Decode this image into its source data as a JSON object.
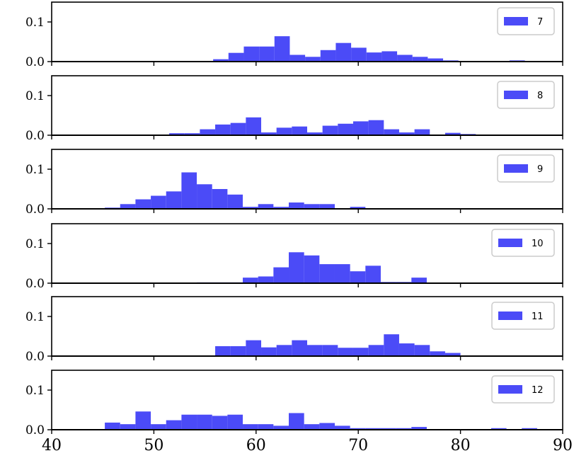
{
  "chart_data": {
    "type": "histogram",
    "layout": "stacked-subplots",
    "shared_x": true,
    "xlim": [
      40,
      90
    ],
    "xticks": [
      40,
      50,
      60,
      70,
      80,
      90
    ],
    "ylim": [
      0,
      0.15
    ],
    "yticks": [
      0.0,
      0.1
    ],
    "ytick_labels": [
      "0.0",
      "0.1"
    ],
    "bar_color": "#4b4bf7",
    "legend_placement": "top-right",
    "grid": false,
    "panels": [
      {
        "name": "7",
        "bins": [
          [
            55.8,
            57.3,
            0.006
          ],
          [
            57.3,
            58.8,
            0.022
          ],
          [
            58.8,
            60.3,
            0.038
          ],
          [
            60.3,
            61.8,
            0.038
          ],
          [
            61.8,
            63.3,
            0.064
          ],
          [
            63.3,
            64.8,
            0.017
          ],
          [
            64.8,
            66.3,
            0.012
          ],
          [
            66.3,
            67.8,
            0.029
          ],
          [
            67.8,
            69.3,
            0.047
          ],
          [
            69.3,
            70.8,
            0.035
          ],
          [
            70.8,
            72.3,
            0.023
          ],
          [
            72.3,
            73.8,
            0.026
          ],
          [
            73.8,
            75.3,
            0.017
          ],
          [
            75.3,
            76.8,
            0.012
          ],
          [
            76.8,
            78.3,
            0.008
          ],
          [
            78.3,
            79.8,
            0.003
          ],
          [
            84.8,
            86.3,
            0.003
          ]
        ]
      },
      {
        "name": "8",
        "bins": [
          [
            51.5,
            53.0,
            0.005
          ],
          [
            53.0,
            54.5,
            0.005
          ],
          [
            54.5,
            56.0,
            0.015
          ],
          [
            56.0,
            57.5,
            0.027
          ],
          [
            57.5,
            59.0,
            0.031
          ],
          [
            59.0,
            60.5,
            0.045
          ],
          [
            60.5,
            62.0,
            0.007
          ],
          [
            62.0,
            63.5,
            0.019
          ],
          [
            63.5,
            65.0,
            0.022
          ],
          [
            65.0,
            66.5,
            0.007
          ],
          [
            66.5,
            68.0,
            0.024
          ],
          [
            68.0,
            69.5,
            0.029
          ],
          [
            69.5,
            71.0,
            0.035
          ],
          [
            71.0,
            72.5,
            0.038
          ],
          [
            72.5,
            74.0,
            0.015
          ],
          [
            74.0,
            75.5,
            0.007
          ],
          [
            75.5,
            77.0,
            0.015
          ],
          [
            78.5,
            80.0,
            0.006
          ],
          [
            80.0,
            81.5,
            0.003
          ]
        ]
      },
      {
        "name": "9",
        "bins": [
          [
            45.2,
            46.7,
            0.003
          ],
          [
            46.7,
            48.2,
            0.012
          ],
          [
            48.2,
            49.7,
            0.024
          ],
          [
            49.7,
            51.2,
            0.033
          ],
          [
            51.2,
            52.7,
            0.044
          ],
          [
            52.7,
            54.2,
            0.092
          ],
          [
            54.2,
            55.7,
            0.062
          ],
          [
            55.7,
            57.2,
            0.05
          ],
          [
            57.2,
            58.7,
            0.036
          ],
          [
            58.7,
            60.2,
            0.005
          ],
          [
            60.2,
            61.7,
            0.012
          ],
          [
            61.7,
            63.2,
            0.005
          ],
          [
            63.2,
            64.7,
            0.016
          ],
          [
            64.7,
            66.2,
            0.012
          ],
          [
            66.2,
            67.7,
            0.012
          ],
          [
            69.2,
            70.7,
            0.005
          ]
        ]
      },
      {
        "name": "10",
        "bins": [
          [
            54.2,
            55.7,
            0.002
          ],
          [
            55.7,
            57.2,
            0.002
          ],
          [
            57.2,
            58.7,
            0.002
          ],
          [
            58.7,
            60.2,
            0.014
          ],
          [
            60.2,
            61.7,
            0.017
          ],
          [
            61.7,
            63.2,
            0.04
          ],
          [
            63.2,
            64.7,
            0.078
          ],
          [
            64.7,
            66.2,
            0.07
          ],
          [
            66.2,
            67.7,
            0.048
          ],
          [
            67.7,
            69.2,
            0.048
          ],
          [
            69.2,
            70.7,
            0.03
          ],
          [
            70.7,
            72.2,
            0.044
          ],
          [
            72.2,
            73.7,
            0.003
          ],
          [
            73.7,
            75.2,
            0.003
          ],
          [
            75.2,
            76.7,
            0.014
          ]
        ]
      },
      {
        "name": "11",
        "bins": [
          [
            56.0,
            57.5,
            0.025
          ],
          [
            57.5,
            59.0,
            0.025
          ],
          [
            59.0,
            60.5,
            0.04
          ],
          [
            60.5,
            62.0,
            0.022
          ],
          [
            62.0,
            63.5,
            0.028
          ],
          [
            63.5,
            65.0,
            0.04
          ],
          [
            65.0,
            66.5,
            0.028
          ],
          [
            66.5,
            68.0,
            0.028
          ],
          [
            68.0,
            69.5,
            0.021
          ],
          [
            69.5,
            71.0,
            0.021
          ],
          [
            71.0,
            72.5,
            0.028
          ],
          [
            72.5,
            74.0,
            0.055
          ],
          [
            74.0,
            75.5,
            0.032
          ],
          [
            75.5,
            77.0,
            0.028
          ],
          [
            77.0,
            78.5,
            0.012
          ],
          [
            78.5,
            80.0,
            0.008
          ]
        ]
      },
      {
        "name": "12",
        "bins": [
          [
            45.2,
            46.7,
            0.018
          ],
          [
            46.7,
            48.2,
            0.014
          ],
          [
            48.2,
            49.7,
            0.046
          ],
          [
            49.7,
            51.2,
            0.014
          ],
          [
            51.2,
            52.7,
            0.024
          ],
          [
            52.7,
            54.2,
            0.038
          ],
          [
            54.2,
            55.7,
            0.038
          ],
          [
            55.7,
            57.2,
            0.035
          ],
          [
            57.2,
            58.7,
            0.038
          ],
          [
            58.7,
            60.2,
            0.014
          ],
          [
            60.2,
            61.7,
            0.014
          ],
          [
            61.7,
            63.2,
            0.01
          ],
          [
            63.2,
            64.7,
            0.042
          ],
          [
            64.7,
            66.2,
            0.014
          ],
          [
            66.2,
            67.7,
            0.017
          ],
          [
            67.7,
            69.2,
            0.01
          ],
          [
            69.2,
            70.7,
            0.004
          ],
          [
            70.7,
            72.2,
            0.004
          ],
          [
            72.2,
            73.7,
            0.004
          ],
          [
            73.7,
            75.2,
            0.004
          ],
          [
            75.2,
            76.7,
            0.007
          ],
          [
            83.0,
            84.5,
            0.004
          ],
          [
            86.0,
            87.5,
            0.004
          ]
        ]
      }
    ]
  }
}
